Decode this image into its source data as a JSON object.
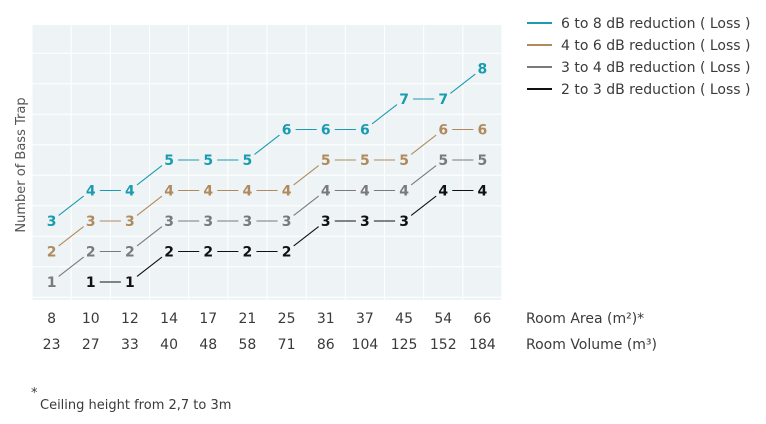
{
  "chart_data": {
    "type": "line",
    "xlabel": "Room Area (m²)*",
    "xlabel2": "Room Volume (m³)",
    "ylabel": "Number of Bass Trap",
    "x": [
      8,
      10,
      12,
      14,
      17,
      21,
      25,
      31,
      37,
      45,
      54,
      66
    ],
    "x2": [
      23,
      27,
      33,
      40,
      48,
      58,
      71,
      86,
      104,
      125,
      152,
      184
    ],
    "ylim": [
      0.5,
      9
    ],
    "grid": true,
    "legend_position": "top-right",
    "series": [
      {
        "name": "6 to 8 dB reduction ( Loss )",
        "color": "#1b9bb0",
        "values": [
          3,
          4,
          4,
          5,
          5,
          5,
          6,
          6,
          6,
          7,
          7,
          8
        ]
      },
      {
        "name": "4 to 6 dB reduction ( Loss )",
        "color": "#b08a5c",
        "values": [
          2,
          3,
          3,
          4,
          4,
          4,
          4,
          5,
          5,
          5,
          6,
          6
        ]
      },
      {
        "name": "3 to 4 dB reduction ( Loss )",
        "color": "#7a7a7a",
        "values": [
          1,
          2,
          2,
          3,
          3,
          3,
          3,
          4,
          4,
          4,
          5,
          5
        ]
      },
      {
        "name": "2 to 3 dB reduction ( Loss )",
        "color": "#111111",
        "values": [
          null,
          1,
          1,
          2,
          2,
          2,
          2,
          3,
          3,
          3,
          4,
          4
        ]
      }
    ],
    "footnote": {
      "mark": "*",
      "text": "Ceiling height from 2,7 to 3m"
    }
  }
}
